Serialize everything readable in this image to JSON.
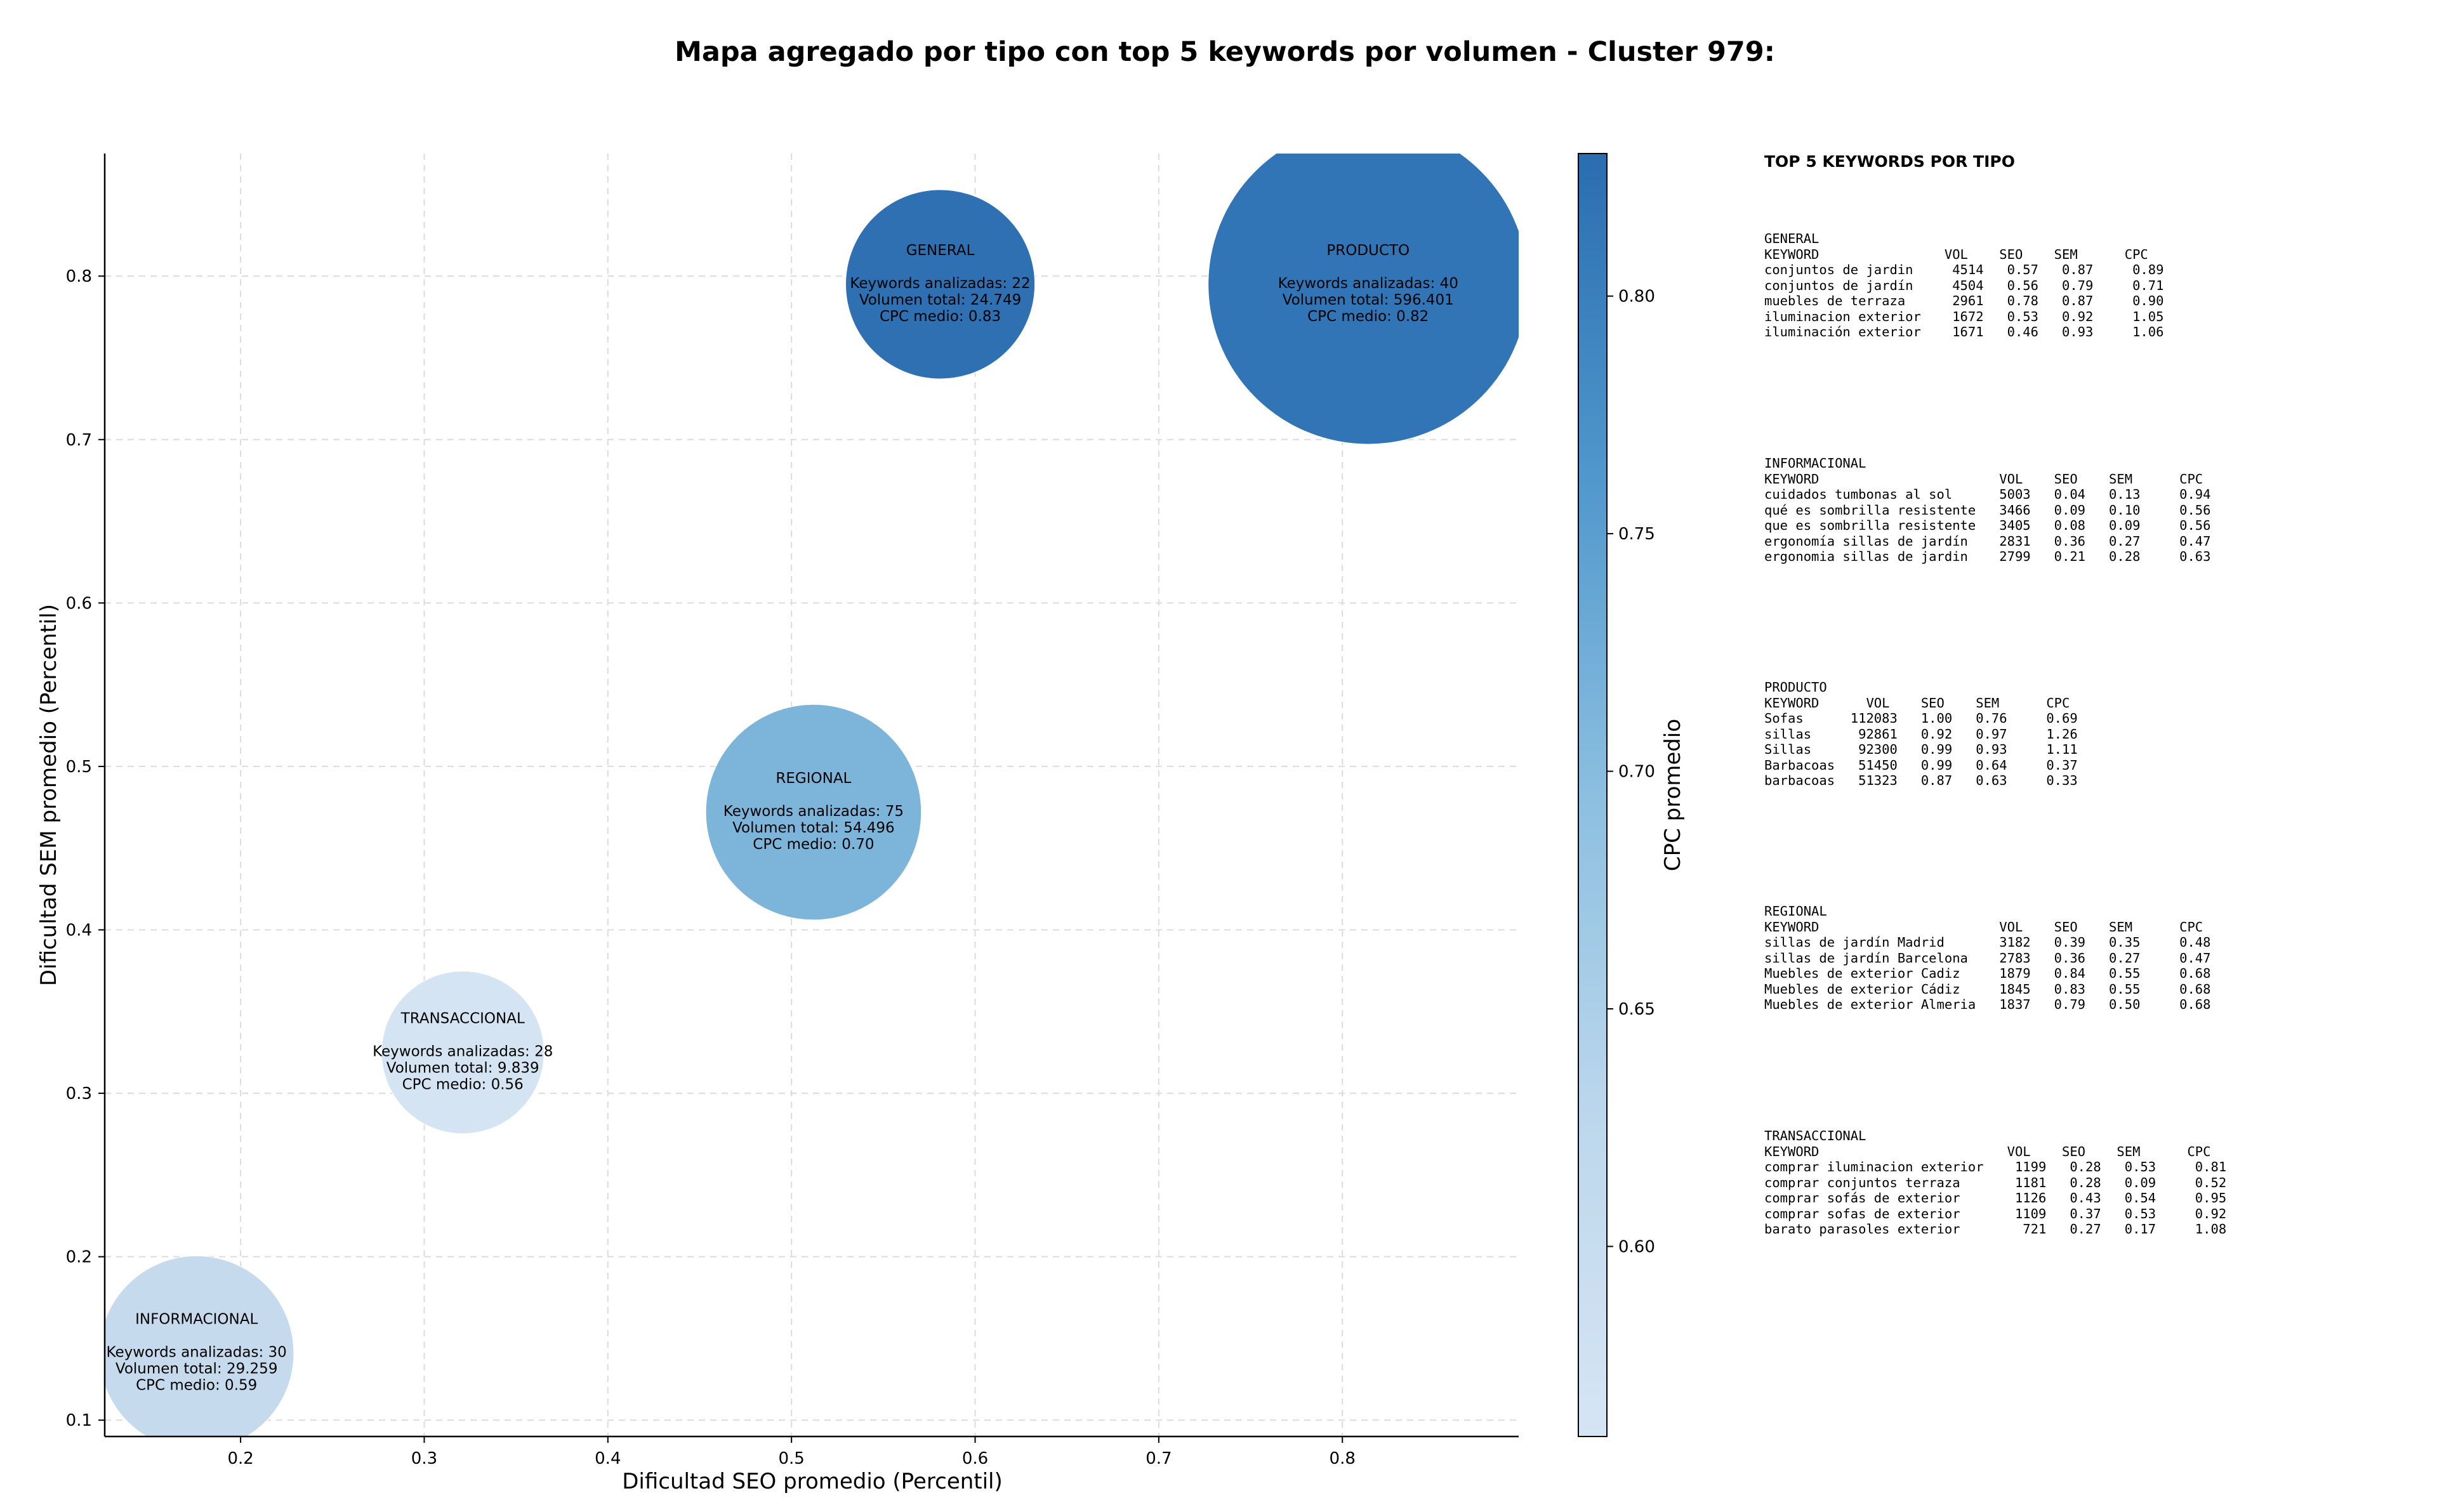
{
  "title": "Mapa agregado por tipo con top 5 keywords por volumen - Cluster 979:",
  "chart_data": {
    "type": "scatter",
    "xlabel": "Dificultad SEO promedio (Percentil)",
    "ylabel": "Dificultad SEM promedio (Percentil)",
    "xlim": [
      0.126,
      0.896
    ],
    "ylim": [
      0.09,
      0.875
    ],
    "x_ticks": [
      "0.2",
      "0.3",
      "0.4",
      "0.5",
      "0.6",
      "0.7",
      "0.8"
    ],
    "y_ticks": [
      "0.1",
      "0.2",
      "0.3",
      "0.4",
      "0.5",
      "0.6",
      "0.7",
      "0.8"
    ],
    "grid": true,
    "colorbar": {
      "label": "CPC promedio",
      "range": [
        0.56,
        0.83
      ],
      "ticks": [
        "0.60",
        "0.65",
        "0.70",
        "0.75",
        "0.80"
      ]
    },
    "bubble_size_encodes": "Volumen total",
    "points": [
      {
        "tipo": "GENERAL",
        "x": 0.581,
        "y": 0.795,
        "keywords": 22,
        "volumen": 24749,
        "cpc": 0.83,
        "lines": [
          "Keywords analizadas: 22",
          "Volumen total: 24.749",
          "CPC medio: 0.83"
        ],
        "color": "#2a6db0"
      },
      {
        "tipo": "PRODUCTO",
        "x": 0.814,
        "y": 0.795,
        "keywords": 40,
        "volumen": 596401,
        "cpc": 0.82,
        "lines": [
          "Keywords analizadas: 40",
          "Volumen total: 596.401",
          "CPC medio: 0.82"
        ],
        "color": "#2e72b5"
      },
      {
        "tipo": "REGIONAL",
        "x": 0.512,
        "y": 0.472,
        "keywords": 75,
        "volumen": 54496,
        "cpc": 0.7,
        "lines": [
          "Keywords analizadas: 75",
          "Volumen total: 54.496",
          "CPC medio: 0.70"
        ],
        "color": "#7ab3d9"
      },
      {
        "tipo": "TRANSACCIONAL",
        "x": 0.321,
        "y": 0.325,
        "keywords": 28,
        "volumen": 9839,
        "cpc": 0.56,
        "lines": [
          "Keywords analizadas: 28",
          "Volumen total: 9.839",
          "CPC medio: 0.56"
        ],
        "color": "#d3e3f2"
      },
      {
        "tipo": "INFORMACIONAL",
        "x": 0.176,
        "y": 0.141,
        "keywords": 30,
        "volumen": 29259,
        "cpc": 0.59,
        "lines": [
          "Keywords analizadas: 30",
          "Volumen total: 29.259",
          "CPC medio: 0.59"
        ],
        "color": "#c4d9ed"
      }
    ]
  },
  "panel": {
    "title": "TOP 5 KEYWORDS POR TIPO",
    "blocks": [
      {
        "name": "GENERAL",
        "lines": [
          "GENERAL",
          "KEYWORD                VOL    SEO    SEM      CPC",
          "conjuntos de jardin     4514   0.57   0.87     0.89",
          "conjuntos de jardín     4504   0.56   0.79     0.71",
          "muebles de terraza      2961   0.78   0.87     0.90",
          "iluminacion exterior    1672   0.53   0.92     1.05",
          "iluminación exterior    1671   0.46   0.93     1.06"
        ]
      },
      {
        "name": "INFORMACIONAL",
        "lines": [
          "INFORMACIONAL",
          "KEYWORD                       VOL    SEO    SEM      CPC",
          "cuidados tumbonas al sol      5003   0.04   0.13     0.94",
          "qué es sombrilla resistente   3466   0.09   0.10     0.56",
          "que es sombrilla resistente   3405   0.08   0.09     0.56",
          "ergonomía sillas de jardín    2831   0.36   0.27     0.47",
          "ergonomia sillas de jardin    2799   0.21   0.28     0.63"
        ]
      },
      {
        "name": "PRODUCTO",
        "lines": [
          "PRODUCTO",
          "KEYWORD      VOL    SEO    SEM      CPC",
          "Sofas      112083   1.00   0.76     0.69",
          "sillas      92861   0.92   0.97     1.26",
          "Sillas      92300   0.99   0.93     1.11",
          "Barbacoas   51450   0.99   0.64     0.37",
          "barbacoas   51323   0.87   0.63     0.33"
        ]
      },
      {
        "name": "REGIONAL",
        "lines": [
          "REGIONAL",
          "KEYWORD                       VOL    SEO    SEM      CPC",
          "sillas de jardín Madrid       3182   0.39   0.35     0.48",
          "sillas de jardín Barcelona    2783   0.36   0.27     0.47",
          "Muebles de exterior Cadiz     1879   0.84   0.55     0.68",
          "Muebles de exterior Cádiz     1845   0.83   0.55     0.68",
          "Muebles de exterior Almeria   1837   0.79   0.50     0.68"
        ]
      },
      {
        "name": "TRANSACCIONAL",
        "lines": [
          "TRANSACCIONAL",
          "KEYWORD                        VOL    SEO    SEM      CPC",
          "comprar iluminacion exterior    1199   0.28   0.53     0.81",
          "comprar conjuntos terraza       1181   0.28   0.09     0.52",
          "comprar sofás de exterior       1126   0.43   0.54     0.95",
          "comprar sofas de exterior       1109   0.37   0.53     0.92",
          "barato parasoles exterior        721   0.27   0.17     1.08"
        ]
      }
    ]
  }
}
